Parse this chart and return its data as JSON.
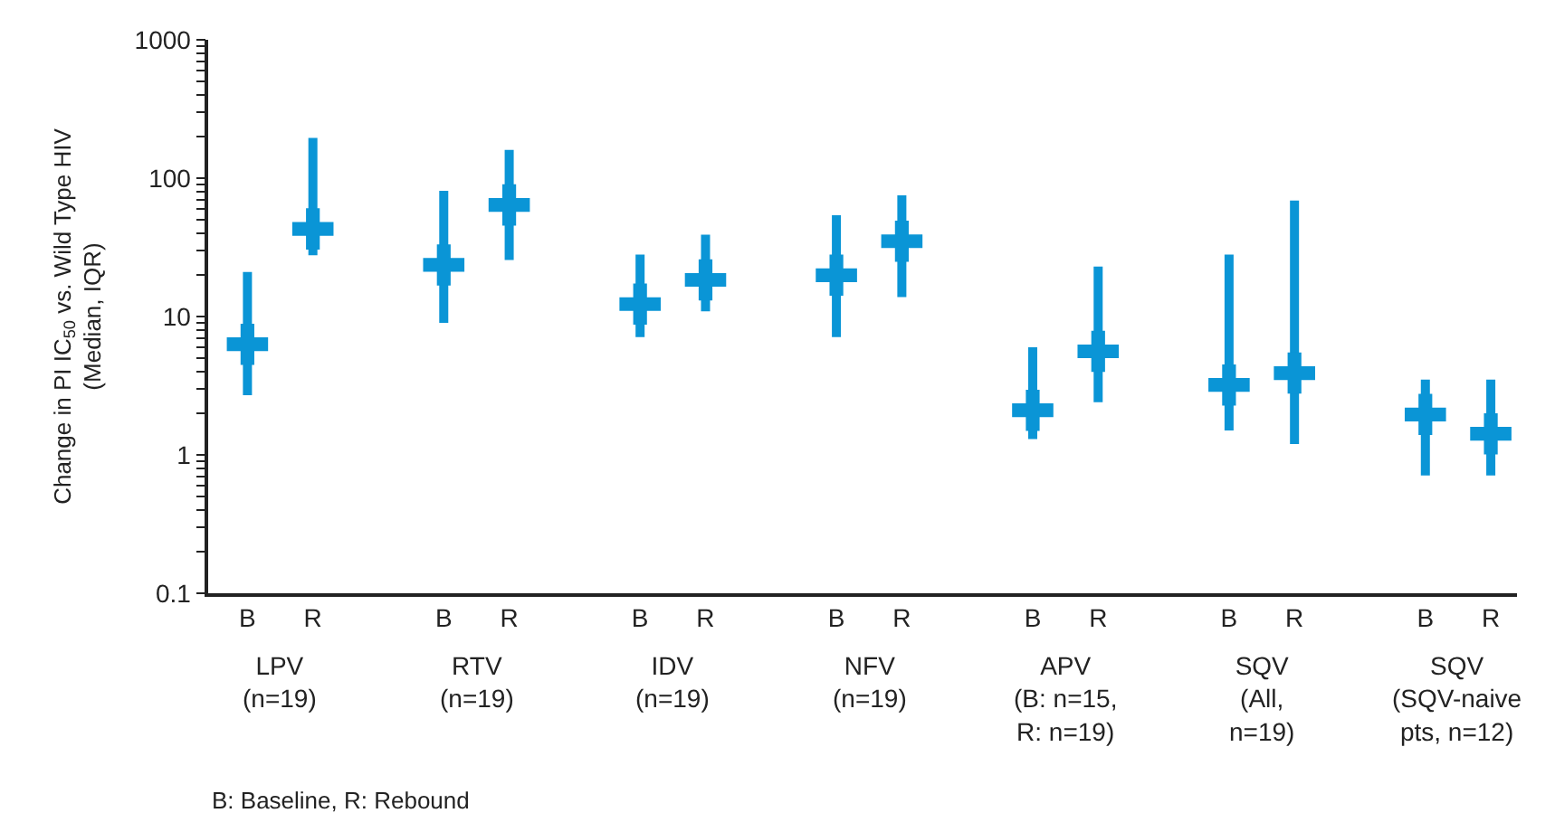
{
  "chart_data": {
    "type": "scatter",
    "ylabel": "Change in PI IC$_{50}$ vs. Wild Type HIV\n(Median, IQR)",
    "categories": [
      "B",
      "R",
      null,
      "B",
      "R",
      null,
      "B",
      "R",
      null,
      "B",
      "R",
      null,
      "B",
      "R",
      null,
      "B",
      "R",
      null,
      "B",
      "R"
    ],
    "series": [
      {
        "color": "#0a95d6",
        "values": [
          6.3,
          43,
          null,
          23.6,
          64,
          null,
          12.3,
          18.4,
          null,
          19.9,
          35,
          null,
          2.1,
          5.6,
          null,
          3.2,
          3.9,
          null,
          1.96,
          1.42
        ],
        "errors": [
          [
            2.7,
            21
          ],
          [
            27.7,
            195
          ],
          null,
          [
            9,
            81
          ],
          [
            25.6,
            160
          ],
          null,
          [
            7.1,
            28
          ],
          [
            10.9,
            39
          ],
          null,
          [
            7.1,
            54
          ],
          [
            13.8,
            75
          ],
          null,
          [
            1.3,
            6.0
          ],
          [
            2.4,
            23
          ],
          null,
          [
            1.5,
            28
          ],
          [
            1.2,
            69
          ],
          null,
          [
            0.71,
            3.5
          ],
          [
            0.71,
            3.5
          ]
        ]
      }
    ],
    "log": "y",
    "ylim": [
      0.1,
      1000
    ],
    "yticks": [
      0.1,
      {
        "value": 0.2,
        "label": null
      },
      {
        "value": 0.3,
        "label": null
      },
      {
        "value": 0.4,
        "label": null
      },
      {
        "value": 0.5,
        "label": null
      },
      {
        "value": 0.6,
        "label": null
      },
      {
        "value": 0.7,
        "label": null
      },
      {
        "value": 0.8,
        "label": null
      },
      {
        "value": 0.9,
        "label": null
      },
      1,
      {
        "value": 2,
        "label": null
      },
      {
        "value": 3,
        "label": null
      },
      {
        "value": 4,
        "label": null
      },
      {
        "value": 5,
        "label": null
      },
      {
        "value": 6,
        "label": null
      },
      {
        "value": 7,
        "label": null
      },
      {
        "value": 8,
        "label": null
      },
      {
        "value": 9,
        "label": null
      },
      10,
      {
        "value": 20,
        "label": null
      },
      {
        "value": 30,
        "label": null
      },
      {
        "value": 40,
        "label": null
      },
      {
        "value": 50,
        "label": null
      },
      {
        "value": 60,
        "label": null
      },
      {
        "value": 70,
        "label": null
      },
      {
        "value": 80,
        "label": null
      },
      {
        "value": 90,
        "label": null
      },
      100,
      {
        "value": 200,
        "label": null
      },
      {
        "value": 300,
        "label": null
      },
      {
        "value": 400,
        "label": null
      },
      {
        "value": 500,
        "label": null
      },
      {
        "value": 600,
        "label": null
      },
      {
        "value": 700,
        "label": null
      },
      {
        "value": 800,
        "label": null
      },
      {
        "value": 900,
        "label": null
      },
      1000
    ],
    "marker": "cross",
    "annotations": [
      "LPV\n(n=19)",
      "RTV\n(n=19)",
      "IDV\n(n=19)",
      "NFV\n(n=19)",
      "APV\n(B: n=15,\nR: n=19)",
      "SQV\n(All,\nn=19)",
      "SQV\n(SQV-naive\npts, n=12)",
      "B: Baseline, R: Rebound"
    ]
  }
}
